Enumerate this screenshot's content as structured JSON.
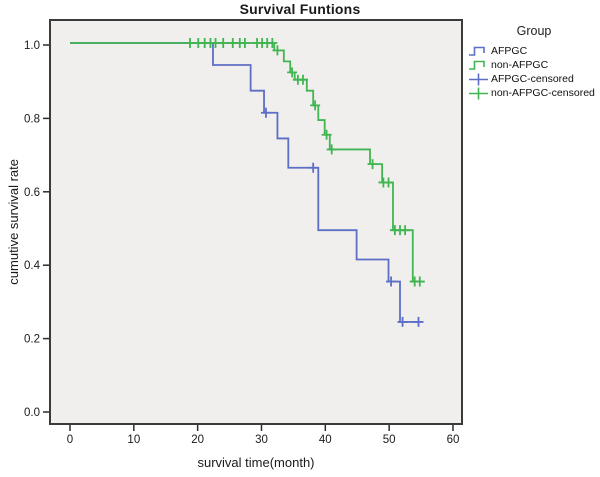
{
  "title": "Survival Funtions",
  "legend": {
    "title": "Group",
    "items": [
      {
        "label": "AFPGC",
        "symbol": "step",
        "color": "#5d6ec6"
      },
      {
        "label": "non-AFPGC",
        "symbol": "step",
        "color": "#41b551"
      },
      {
        "label": "AFPGC-censored",
        "symbol": "plus",
        "color": "#5d6ec6"
      },
      {
        "label": "non-AFPGC-censored",
        "symbol": "plus",
        "color": "#41b551"
      }
    ]
  },
  "colors": {
    "afpgc_blue": "#5d6ec6",
    "non_afpgc_green": "#41b551",
    "plot_background": "#f0efed",
    "frame_border": "#3a3a3a",
    "tick": "#2b2b2b",
    "text": "#1a1a1a"
  },
  "chart_data": {
    "type": "line",
    "subtype": "kaplan_meier_step",
    "title": "Survival Funtions",
    "xlabel": "survival time(month)",
    "ylabel": "cumutive survival rate",
    "xlim": [
      -3.1,
      61.4
    ],
    "ylim": [
      -0.04,
      1.06
    ],
    "x_ticks": [
      "0",
      "10",
      "20",
      "30",
      "40",
      "50",
      "60"
    ],
    "x_tick_values": [
      0,
      10,
      20,
      30,
      40,
      50,
      60
    ],
    "y_ticks": [
      "0.0",
      "0.2",
      "0.4",
      "0.6",
      "0.8",
      "1.0"
    ],
    "y_tick_values": [
      0.0,
      0.2,
      0.4,
      0.6,
      0.8,
      1.0
    ],
    "grid": false,
    "legend_position": "right",
    "series": [
      {
        "name": "AFPGC",
        "color": "#5d6ec6",
        "steps": [
          [
            0,
            1.0
          ],
          [
            22.4,
            0.94
          ],
          [
            28.3,
            0.87
          ],
          [
            30.4,
            0.81
          ],
          [
            32.5,
            0.74
          ],
          [
            34.2,
            0.66
          ],
          [
            38.9,
            0.49
          ],
          [
            44.9,
            0.41
          ],
          [
            49.9,
            0.35
          ],
          [
            51.7,
            0.24
          ]
        ],
        "end_t": 54.8,
        "censored": [
          [
            30.7,
            0.81
          ],
          [
            38.1,
            0.66
          ],
          [
            50.3,
            0.35
          ],
          [
            52.1,
            0.24
          ],
          [
            54.6,
            0.24
          ]
        ]
      },
      {
        "name": "non-AFPGC",
        "color": "#41b551",
        "steps": [
          [
            0,
            1.0
          ],
          [
            32.0,
            0.98
          ],
          [
            33.5,
            0.95
          ],
          [
            34.5,
            0.92
          ],
          [
            35.2,
            0.9
          ],
          [
            37.1,
            0.87
          ],
          [
            38.1,
            0.83
          ],
          [
            38.9,
            0.79
          ],
          [
            39.9,
            0.75
          ],
          [
            40.7,
            0.71
          ],
          [
            47.0,
            0.67
          ],
          [
            48.9,
            0.62
          ],
          [
            50.6,
            0.49
          ],
          [
            53.7,
            0.35
          ]
        ],
        "end_t": 55.1,
        "censored": [
          [
            18.8,
            1.0
          ],
          [
            20.1,
            1.0
          ],
          [
            21.1,
            1.0
          ],
          [
            22.0,
            1.0
          ],
          [
            22.8,
            1.0
          ],
          [
            24.0,
            1.0
          ],
          [
            25.5,
            1.0
          ],
          [
            26.6,
            1.0
          ],
          [
            27.4,
            1.0
          ],
          [
            29.3,
            1.0
          ],
          [
            30.1,
            1.0
          ],
          [
            30.9,
            1.0
          ],
          [
            31.7,
            1.0
          ],
          [
            32.5,
            0.98
          ],
          [
            34.8,
            0.92
          ],
          [
            35.7,
            0.9
          ],
          [
            36.5,
            0.9
          ],
          [
            38.4,
            0.83
          ],
          [
            40.2,
            0.75
          ],
          [
            41.0,
            0.71
          ],
          [
            47.4,
            0.67
          ],
          [
            49.1,
            0.62
          ],
          [
            49.9,
            0.62
          ],
          [
            50.9,
            0.49
          ],
          [
            51.7,
            0.49
          ],
          [
            52.5,
            0.49
          ],
          [
            54.0,
            0.35
          ],
          [
            54.8,
            0.35
          ]
        ]
      }
    ]
  }
}
